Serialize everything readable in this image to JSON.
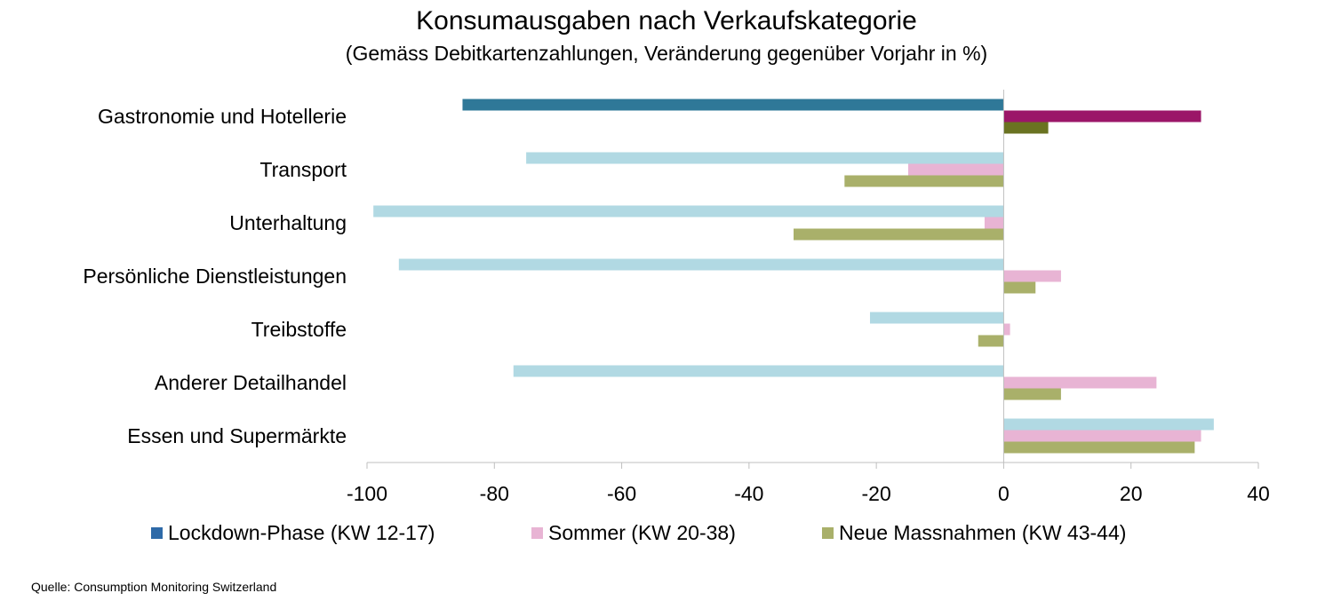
{
  "chart_data": {
    "type": "bar",
    "orientation": "horizontal",
    "title": "Konsumausgaben nach Verkaufskategorie",
    "subtitle": "(Gemäss Debitkartenzahlungen, Veränderung gegenüber Vorjahr in %)",
    "categories": [
      "Gastronomie und Hotellerie",
      "Transport",
      "Unterhaltung",
      "Persönliche Dienstleistungen",
      "Treibstoffe",
      "Anderer Detailhandel",
      "Essen und Supermärkte"
    ],
    "series": [
      {
        "name": "Lockdown-Phase (KW 12-17)",
        "legend_color": "#2e6aa8",
        "values": [
          -85,
          -75,
          -99,
          -95,
          -21,
          -77,
          33
        ]
      },
      {
        "name": "Sommer (KW 20-38)",
        "legend_color": "#e8b4d4",
        "values": [
          31,
          -15,
          -3,
          9,
          1,
          24,
          31
        ]
      },
      {
        "name": "Neue Massnahmen (KW 43-44)",
        "legend_color": "#a9b06a",
        "values": [
          7,
          -25,
          -33,
          5,
          -4,
          9,
          30
        ]
      }
    ],
    "bar_colors": {
      "highlight_category": "Gastronomie und Hotellerie",
      "highlight": [
        "#2f7898",
        "#9b1668",
        "#6a7321"
      ],
      "default": [
        "#b1d9e3",
        "#e8b4d4",
        "#a9b06a"
      ]
    },
    "xlim": [
      -100,
      40
    ],
    "xticks": [
      "-100",
      "-80",
      "-60",
      "-40",
      "-20",
      "0",
      "20",
      "40"
    ],
    "xtick_values": [
      -100,
      -80,
      -60,
      -40,
      -20,
      0,
      20,
      40
    ],
    "xlabel": "",
    "ylabel": "",
    "grid": false,
    "legend_position": "bottom"
  },
  "source": "Quelle: Consumption Monitoring Switzerland"
}
